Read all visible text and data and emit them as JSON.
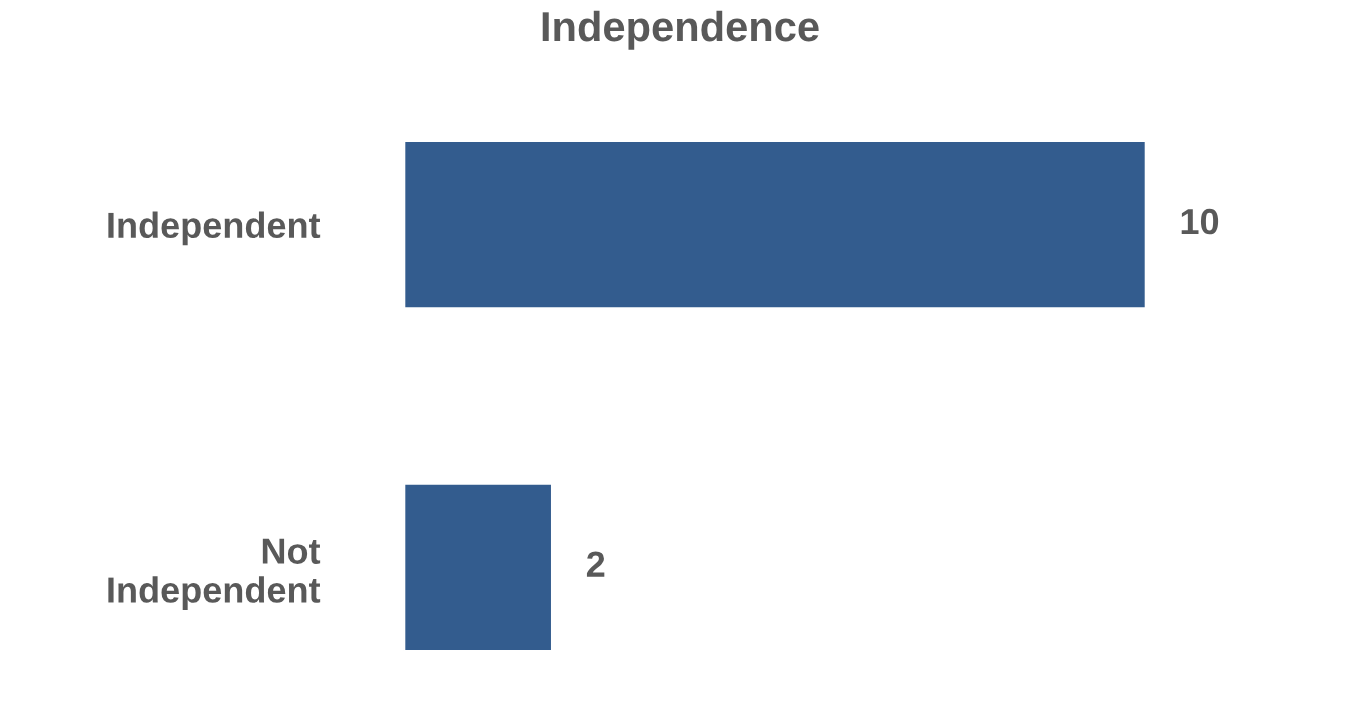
{
  "chart_data": {
    "type": "bar",
    "title": "Independence",
    "orientation": "horizontal",
    "categories": [
      "Independent",
      "Not Independent"
    ],
    "values": [
      10,
      2
    ],
    "color": "#335c8e",
    "data_labels": true,
    "grid": false,
    "legend": false
  }
}
